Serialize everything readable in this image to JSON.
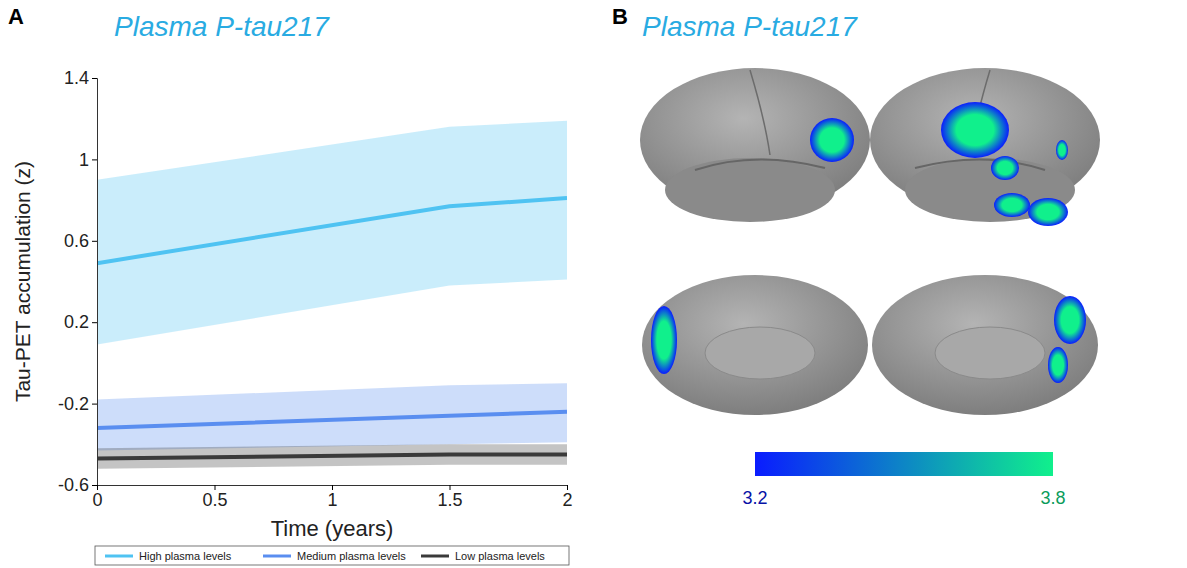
{
  "chart_data": [
    {
      "type": "line",
      "panel": "A",
      "title": "Plasma P-tau217",
      "x_label": "Time (years)",
      "y_label": "Tau-PET accumulation (z)",
      "x": [
        0,
        1.5,
        2
      ],
      "xlim": [
        0,
        2
      ],
      "xticks": [
        0,
        0.5,
        1,
        1.5,
        2
      ],
      "ylim": [
        -0.6,
        1.4
      ],
      "yticks": [
        -0.6,
        -0.2,
        0.2,
        0.6,
        1,
        1.4
      ],
      "grid": false,
      "legend": "bottom",
      "series": [
        {
          "name": "High plasma levels",
          "color": "#4fc3f2",
          "values": [
            0.49,
            0.77,
            0.81
          ],
          "lower": [
            0.09,
            0.38,
            0.41
          ],
          "upper": [
            0.9,
            1.16,
            1.19
          ]
        },
        {
          "name": "Medium plasma levels",
          "color": "#5a8ef0",
          "values": [
            -0.32,
            -0.26,
            -0.24
          ],
          "lower": [
            -0.43,
            -0.4,
            -0.39
          ],
          "upper": [
            -0.18,
            -0.11,
            -0.1
          ]
        },
        {
          "name": "Low plasma levels",
          "color": "#3a3a3a",
          "values": [
            -0.47,
            -0.45,
            -0.45
          ],
          "lower": [
            -0.52,
            -0.5,
            -0.5
          ],
          "upper": [
            -0.42,
            -0.4,
            -0.4
          ]
        }
      ]
    },
    {
      "type": "brain_map",
      "panel": "B",
      "title": "Plasma P-tau217",
      "colorbar": {
        "range": [
          3.2,
          3.8
        ],
        "ticks": [
          3.2,
          3.8
        ]
      }
    }
  ]
}
